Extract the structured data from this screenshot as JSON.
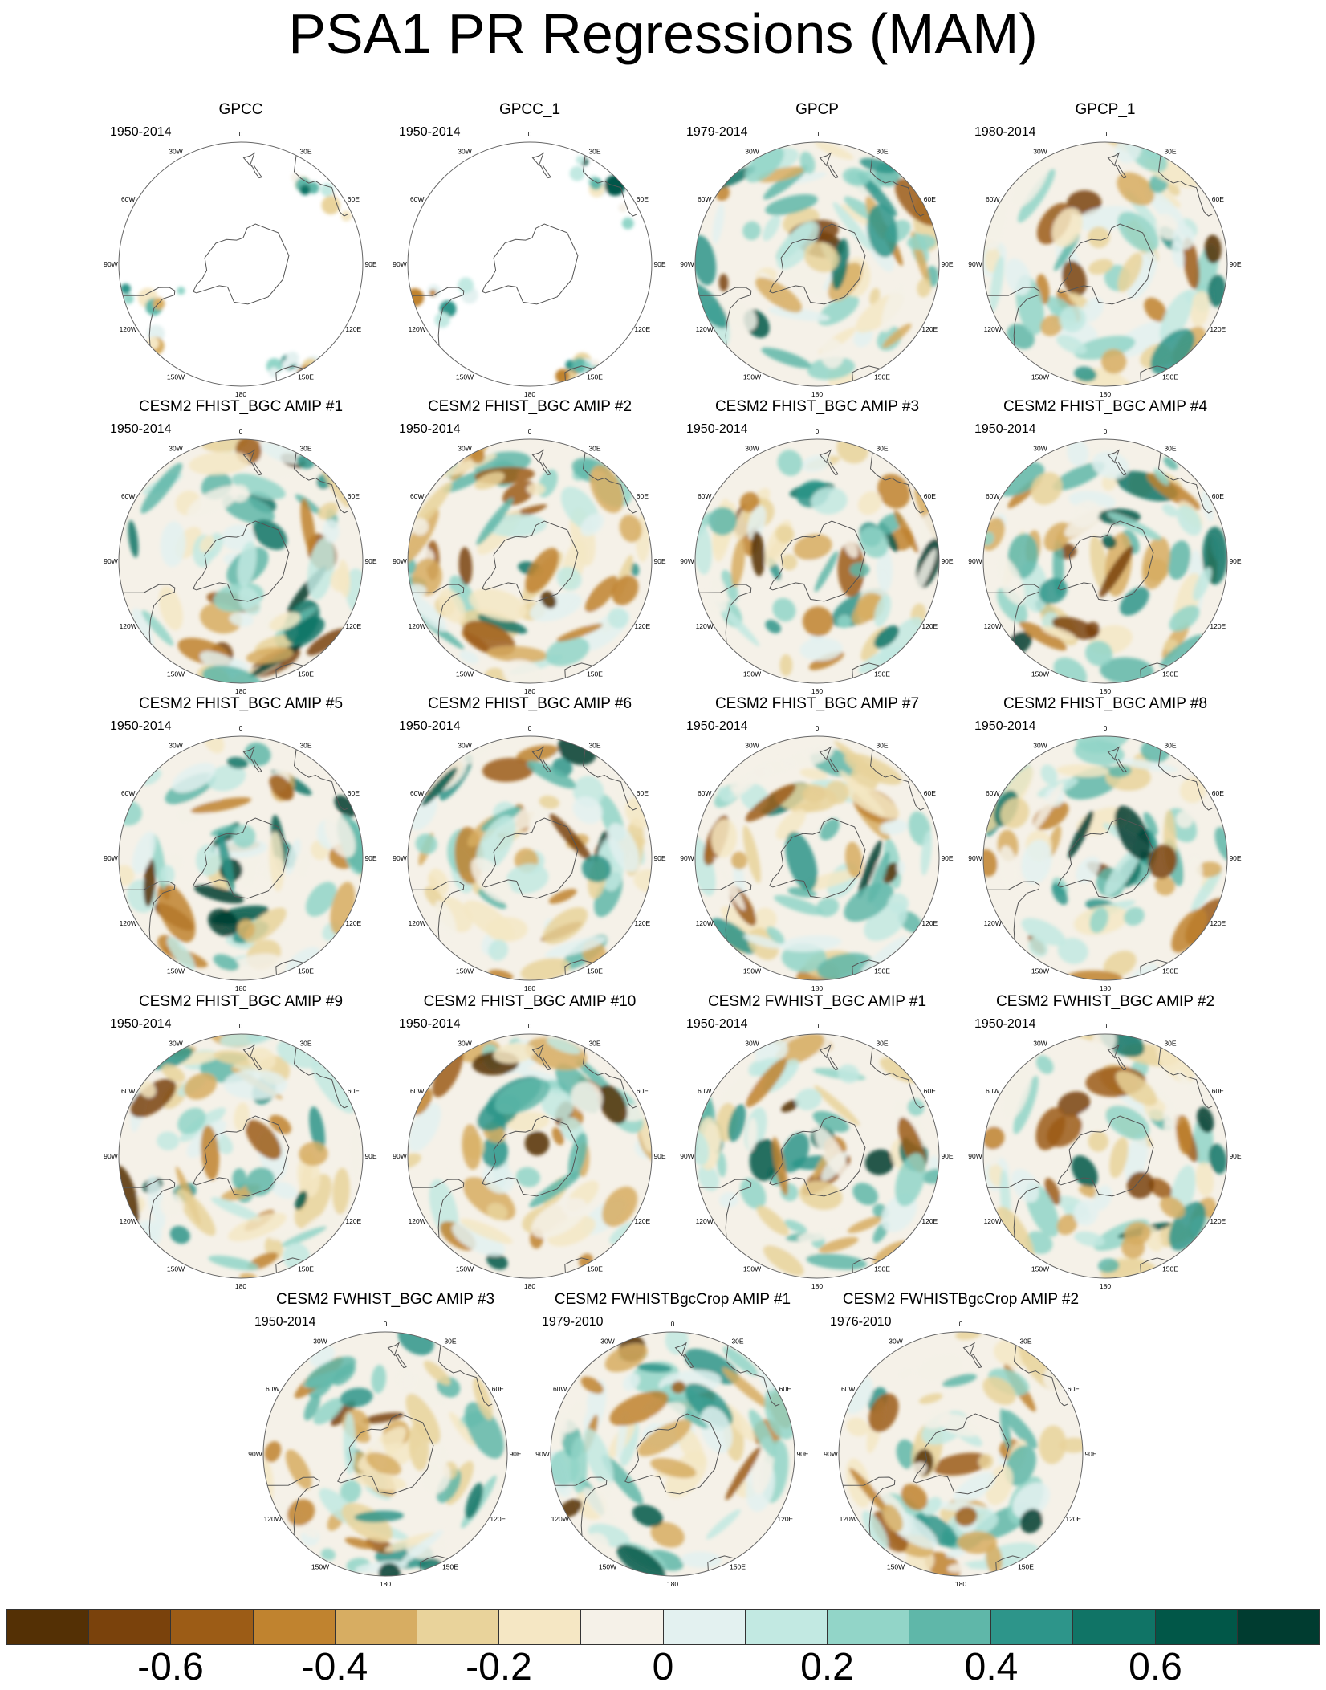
{
  "title": "PSA1 PR Regressions (MAM)",
  "colors": {
    "bins": [
      "#543005",
      "#7a420c",
      "#9c5c16",
      "#c0832f",
      "#d7ad62",
      "#e9d39b",
      "#f5e7c4",
      "#f5f1e8",
      "#e3f1f0",
      "#c2e9e2",
      "#92d5c8",
      "#5fb7a9",
      "#2d958a",
      "#107466",
      "#015748",
      "#003c30"
    ],
    "land": "#ffffff",
    "coast": "#555555"
  },
  "colorbar": {
    "min": -0.8,
    "max": 0.8,
    "step": 0.1,
    "labels": [
      {
        "text": "-0.6",
        "value": -0.6
      },
      {
        "text": "-0.4",
        "value": -0.4
      },
      {
        "text": "-0.2",
        "value": -0.2
      },
      {
        "text": "0",
        "value": 0
      },
      {
        "text": "0.2",
        "value": 0.2
      },
      {
        "text": "0.4",
        "value": 0.4
      },
      {
        "text": "0.6",
        "value": 0.6
      }
    ]
  },
  "lon_labels": [
    "0",
    "30E",
    "60E",
    "90E",
    "120E",
    "150E",
    "180",
    "150W",
    "120W",
    "90W",
    "60W",
    "30W"
  ],
  "panels": [
    {
      "title": "GPCC",
      "years": "1950-2014",
      "land_only": true,
      "seed": 1
    },
    {
      "title": "GPCC_1",
      "years": "1950-2014",
      "land_only": true,
      "seed": 2
    },
    {
      "title": "GPCP",
      "years": "1979-2014",
      "land_only": false,
      "seed": 3
    },
    {
      "title": "GPCP_1",
      "years": "1980-2014",
      "land_only": false,
      "seed": 4
    },
    {
      "title": "CESM2 FHIST_BGC AMIP #1",
      "years": "1950-2014",
      "land_only": false,
      "seed": 5
    },
    {
      "title": "CESM2 FHIST_BGC AMIP #2",
      "years": "1950-2014",
      "land_only": false,
      "seed": 6
    },
    {
      "title": "CESM2 FHIST_BGC AMIP #3",
      "years": "1950-2014",
      "land_only": false,
      "seed": 7
    },
    {
      "title": "CESM2 FHIST_BGC AMIP #4",
      "years": "1950-2014",
      "land_only": false,
      "seed": 8
    },
    {
      "title": "CESM2 FHIST_BGC AMIP #5",
      "years": "1950-2014",
      "land_only": false,
      "seed": 9
    },
    {
      "title": "CESM2 FHIST_BGC AMIP #6",
      "years": "1950-2014",
      "land_only": false,
      "seed": 10
    },
    {
      "title": "CESM2 FHIST_BGC AMIP #7",
      "years": "1950-2014",
      "land_only": false,
      "seed": 11
    },
    {
      "title": "CESM2 FHIST_BGC AMIP #8",
      "years": "1950-2014",
      "land_only": false,
      "seed": 12
    },
    {
      "title": "CESM2 FHIST_BGC AMIP #9",
      "years": "1950-2014",
      "land_only": false,
      "seed": 13
    },
    {
      "title": "CESM2 FHIST_BGC AMIP #10",
      "years": "1950-2014",
      "land_only": false,
      "seed": 14
    },
    {
      "title": "CESM2 FWHIST_BGC AMIP #1",
      "years": "1950-2014",
      "land_only": false,
      "seed": 15
    },
    {
      "title": "CESM2 FWHIST_BGC AMIP #2",
      "years": "1950-2014",
      "land_only": false,
      "seed": 16
    },
    {
      "title": "CESM2 FWHIST_BGC AMIP #3",
      "years": "1950-2014",
      "land_only": false,
      "seed": 17
    },
    {
      "title": "CESM2 FWHISTBgcCrop AMIP #1",
      "years": "1979-2010",
      "land_only": false,
      "seed": 18
    },
    {
      "title": "CESM2 FWHISTBgcCrop AMIP #2",
      "years": "1976-2010",
      "land_only": false,
      "seed": 19
    }
  ]
}
